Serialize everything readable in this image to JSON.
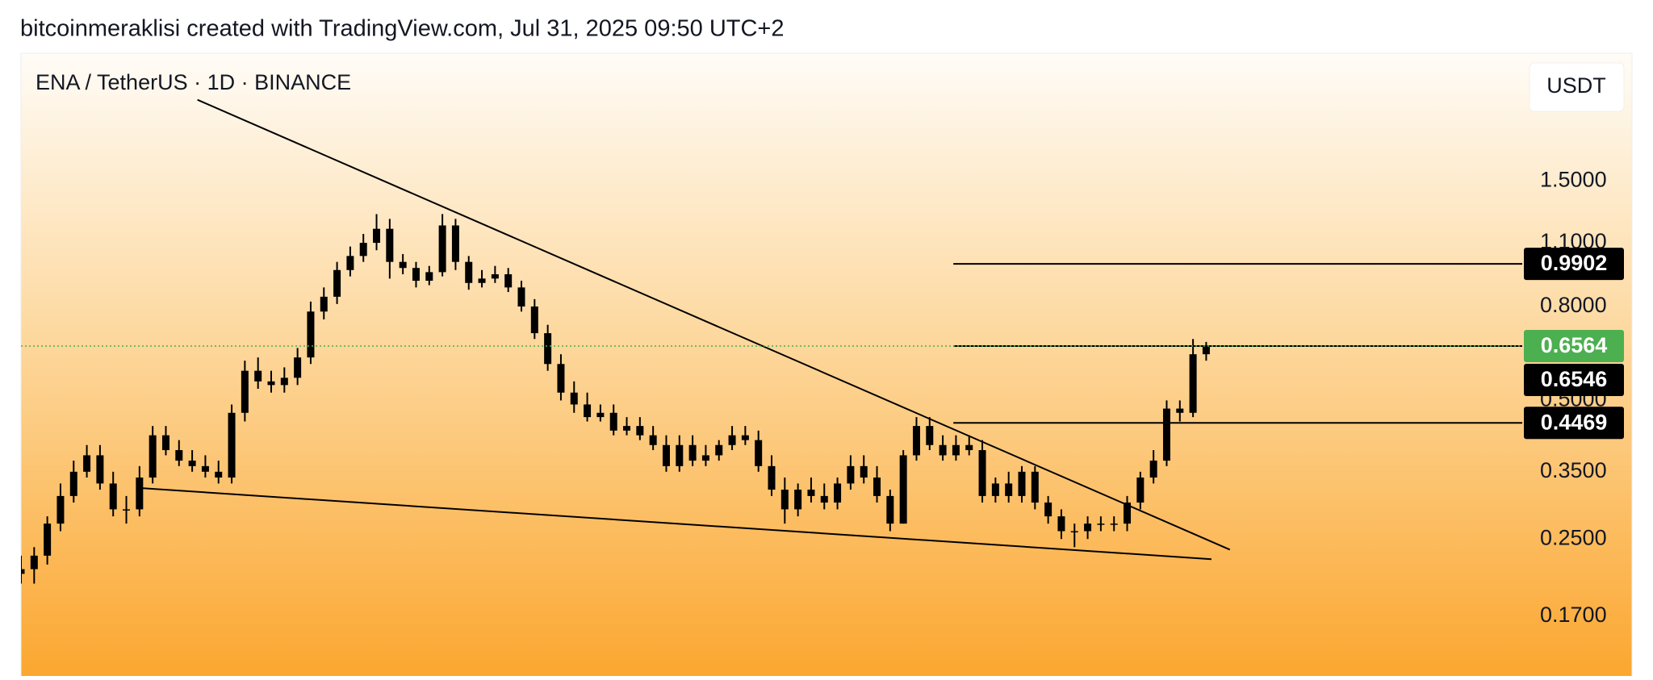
{
  "header": "bitcoinmeraklisi created with TradingView.com, Jul 31, 2025 09:50 UTC+2",
  "chart_data": {
    "type": "candlestick",
    "title": "ENA / TetherUS · 1D · BINANCE",
    "currency_button": "USDT",
    "log_scale": true,
    "color": "#000000",
    "xlim": [
      0,
      114
    ],
    "ylim": [
      0.126,
      2.84
    ],
    "yticks": [
      {
        "value": 0.17,
        "label": "0.1700"
      },
      {
        "value": 0.25,
        "label": "0.2500"
      },
      {
        "value": 0.35,
        "label": "0.3500"
      },
      {
        "value": 0.5,
        "label": "0.5000"
      },
      {
        "value": 0.8,
        "label": "0.8000"
      },
      {
        "value": 1.1,
        "label": "1.1000"
      },
      {
        "value": 1.5,
        "label": "1.5000"
      }
    ],
    "open": [
      0.21,
      0.215,
      0.23,
      0.27,
      0.31,
      0.35,
      0.38,
      0.33,
      0.29,
      0.29,
      0.34,
      0.42,
      0.39,
      0.37,
      0.36,
      0.35,
      0.34,
      0.47,
      0.58,
      0.55,
      0.54,
      0.56,
      0.62,
      0.78,
      0.84,
      0.96,
      1.03,
      1.1,
      1.18,
      1.0,
      0.97,
      0.91,
      0.95,
      1.2,
      1.0,
      0.9,
      0.92,
      0.94,
      0.88,
      0.8,
      0.7,
      0.6,
      0.52,
      0.49,
      0.46,
      0.47,
      0.43,
      0.44,
      0.42,
      0.4,
      0.36,
      0.4,
      0.37,
      0.38,
      0.4,
      0.42,
      0.41,
      0.36,
      0.32,
      0.29,
      0.32,
      0.31,
      0.3,
      0.33,
      0.36,
      0.34,
      0.31,
      0.27,
      0.38,
      0.44,
      0.4,
      0.38,
      0.4,
      0.39,
      0.31,
      0.33,
      0.31,
      0.35,
      0.3,
      0.28,
      0.26,
      0.26,
      0.27,
      0.27,
      0.27,
      0.3,
      0.34,
      0.37,
      0.48,
      0.47,
      0.63
    ],
    "high": [
      0.23,
      0.24,
      0.28,
      0.33,
      0.37,
      0.4,
      0.4,
      0.35,
      0.31,
      0.36,
      0.44,
      0.44,
      0.41,
      0.39,
      0.38,
      0.37,
      0.49,
      0.61,
      0.62,
      0.58,
      0.59,
      0.65,
      0.82,
      0.88,
      1.0,
      1.08,
      1.15,
      1.27,
      1.24,
      1.04,
      1.0,
      0.98,
      1.27,
      1.24,
      1.03,
      0.96,
      0.98,
      0.97,
      0.91,
      0.83,
      0.73,
      0.63,
      0.55,
      0.52,
      0.49,
      0.49,
      0.46,
      0.46,
      0.44,
      0.42,
      0.42,
      0.42,
      0.4,
      0.41,
      0.44,
      0.44,
      0.43,
      0.38,
      0.34,
      0.33,
      0.34,
      0.33,
      0.34,
      0.38,
      0.38,
      0.36,
      0.32,
      0.39,
      0.46,
      0.46,
      0.42,
      0.42,
      0.42,
      0.41,
      0.34,
      0.35,
      0.36,
      0.36,
      0.31,
      0.29,
      0.27,
      0.28,
      0.28,
      0.28,
      0.31,
      0.35,
      0.39,
      0.5,
      0.5,
      0.68,
      0.67
    ],
    "low": [
      0.2,
      0.2,
      0.22,
      0.26,
      0.3,
      0.34,
      0.32,
      0.28,
      0.27,
      0.28,
      0.33,
      0.38,
      0.36,
      0.35,
      0.34,
      0.33,
      0.33,
      0.45,
      0.53,
      0.52,
      0.52,
      0.54,
      0.6,
      0.75,
      0.81,
      0.93,
      1.0,
      1.06,
      0.92,
      0.94,
      0.88,
      0.89,
      0.93,
      0.96,
      0.87,
      0.88,
      0.9,
      0.86,
      0.78,
      0.68,
      0.58,
      0.5,
      0.47,
      0.45,
      0.45,
      0.42,
      0.42,
      0.41,
      0.39,
      0.35,
      0.35,
      0.36,
      0.36,
      0.37,
      0.39,
      0.4,
      0.35,
      0.31,
      0.27,
      0.28,
      0.3,
      0.29,
      0.29,
      0.32,
      0.33,
      0.3,
      0.26,
      0.27,
      0.37,
      0.39,
      0.37,
      0.37,
      0.38,
      0.3,
      0.3,
      0.3,
      0.3,
      0.29,
      0.27,
      0.25,
      0.24,
      0.25,
      0.26,
      0.26,
      0.26,
      0.29,
      0.33,
      0.36,
      0.45,
      0.46,
      0.61
    ],
    "close": [
      0.215,
      0.23,
      0.27,
      0.31,
      0.35,
      0.38,
      0.33,
      0.29,
      0.29,
      0.34,
      0.42,
      0.39,
      0.37,
      0.36,
      0.35,
      0.34,
      0.47,
      0.58,
      0.55,
      0.54,
      0.56,
      0.62,
      0.78,
      0.84,
      0.96,
      1.03,
      1.1,
      1.18,
      1.0,
      0.97,
      0.91,
      0.95,
      1.2,
      1.0,
      0.9,
      0.92,
      0.94,
      0.88,
      0.8,
      0.7,
      0.6,
      0.52,
      0.49,
      0.46,
      0.47,
      0.43,
      0.44,
      0.42,
      0.4,
      0.36,
      0.4,
      0.37,
      0.38,
      0.4,
      0.42,
      0.41,
      0.36,
      0.32,
      0.29,
      0.32,
      0.31,
      0.3,
      0.33,
      0.36,
      0.34,
      0.31,
      0.27,
      0.38,
      0.44,
      0.4,
      0.38,
      0.4,
      0.39,
      0.31,
      0.33,
      0.31,
      0.35,
      0.3,
      0.28,
      0.26,
      0.26,
      0.27,
      0.27,
      0.27,
      0.3,
      0.34,
      0.37,
      0.48,
      0.47,
      0.63,
      0.6564
    ],
    "trendlines": [
      {
        "x": [
          13.4,
          91.8
        ],
        "y": [
          2.25,
          0.237
        ]
      },
      {
        "x": [
          8.8,
          90.4
        ],
        "y": [
          0.323,
          0.226
        ]
      }
    ],
    "hlines": [
      {
        "from": 70.8,
        "value": 0.9902
      },
      {
        "from": 70.8,
        "value": 0.6564
      },
      {
        "from": 70.8,
        "value": 0.4469
      }
    ],
    "price_tags": [
      {
        "value": 0.9902,
        "color": "#000000"
      },
      {
        "value": 0.6564,
        "color": "#4caf50"
      },
      {
        "value": 0.6546,
        "color": "#000000"
      },
      {
        "value": 0.4469,
        "color": "#000000"
      }
    ]
  }
}
